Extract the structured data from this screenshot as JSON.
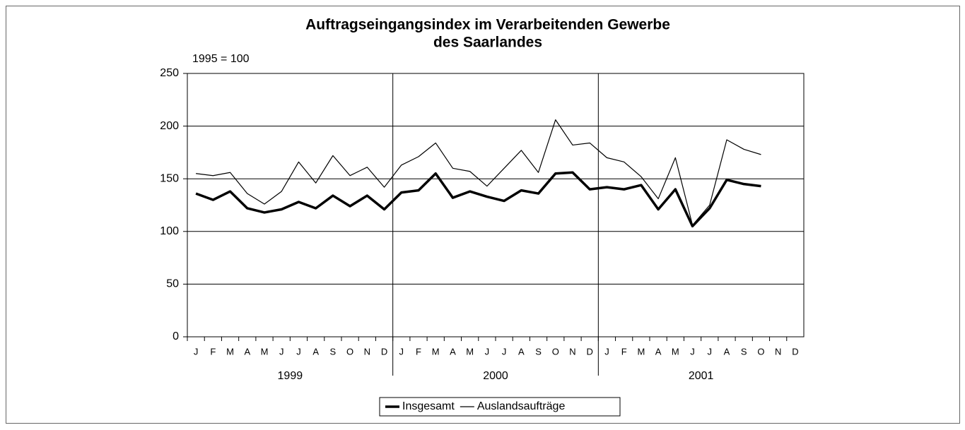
{
  "chart_data": {
    "type": "line",
    "title": "Auftragseingangsindex im Verarbeitenden Gewerbe",
    "subtitle": "des Saarlandes",
    "y_note": "1995 = 100",
    "categories": [
      "J",
      "F",
      "M",
      "A",
      "M",
      "J",
      "J",
      "A",
      "S",
      "O",
      "N",
      "D",
      "J",
      "F",
      "M",
      "A",
      "M",
      "J",
      "J",
      "A",
      "S",
      "O",
      "N",
      "D",
      "J",
      "F",
      "M",
      "A",
      "M",
      "J",
      "J",
      "A",
      "S",
      "O",
      "N",
      "D"
    ],
    "x_groups": [
      "1999",
      "2000",
      "2001"
    ],
    "series": [
      {
        "name": "Insgesamt",
        "color": "#000000",
        "values": [
          136,
          130,
          138,
          122,
          118,
          121,
          128,
          122,
          134,
          124,
          134,
          121,
          137,
          139,
          155,
          132,
          138,
          133,
          129,
          139,
          136,
          155,
          156,
          140,
          142,
          140,
          144,
          121,
          140,
          105,
          122,
          149,
          145,
          143,
          null,
          null
        ]
      },
      {
        "name": "Auslandsaufträge",
        "color": "#000000",
        "values": [
          155,
          153,
          156,
          136,
          126,
          138,
          166,
          146,
          172,
          153,
          161,
          142,
          163,
          171,
          184,
          160,
          157,
          143,
          160,
          177,
          156,
          206,
          182,
          184,
          170,
          166,
          152,
          131,
          170,
          106,
          125,
          187,
          178,
          173,
          null,
          null
        ]
      }
    ],
    "ylim": [
      0,
      250
    ],
    "yticks": [
      0,
      50,
      100,
      150,
      200,
      250
    ],
    "grid": true,
    "legend": "bottom"
  }
}
